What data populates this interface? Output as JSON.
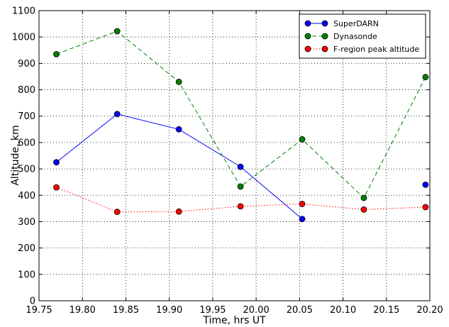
{
  "chart_data": {
    "type": "line",
    "title": "",
    "xlabel": "Time, hrs UT",
    "ylabel": "Altitude, km",
    "xlim": [
      19.75,
      20.2
    ],
    "ylim": [
      0,
      1100
    ],
    "x_ticks": [
      19.75,
      19.8,
      19.85,
      19.9,
      19.95,
      20.0,
      20.05,
      20.1,
      20.15,
      20.2
    ],
    "x_tick_labels": [
      "19.75",
      "19.80",
      "19.85",
      "19.90",
      "19.95",
      "20.00",
      "20.05",
      "20.10",
      "20.15",
      "20.20"
    ],
    "y_ticks": [
      0,
      100,
      200,
      300,
      400,
      500,
      600,
      700,
      800,
      900,
      1000,
      1100
    ],
    "y_tick_labels": [
      "0",
      "100",
      "200",
      "300",
      "400",
      "500",
      "600",
      "700",
      "800",
      "900",
      "1000",
      "1100"
    ],
    "grid": true,
    "legend_position": "top-right",
    "series": [
      {
        "name": "SuperDARN",
        "color": "#0000ff",
        "line_style": "solid",
        "segments": [
          [
            [
              19.77,
              525
            ],
            [
              19.84,
              708
            ],
            [
              19.911,
              650
            ],
            [
              19.982,
              508
            ],
            [
              20.053,
              310
            ]
          ],
          [
            [
              20.195,
              440
            ]
          ]
        ]
      },
      {
        "name": "Dynasonde",
        "color": "#008000",
        "line_style": "dashed",
        "segments": [
          [
            [
              19.77,
              935
            ],
            [
              19.84,
              1022
            ],
            [
              19.911,
              830
            ],
            [
              19.982,
              433
            ],
            [
              20.053,
              612
            ],
            [
              20.124,
              390
            ],
            [
              20.195,
              848
            ]
          ]
        ]
      },
      {
        "name": "F-region peak altitude",
        "color": "#ff0000",
        "line_style": "dotted",
        "segments": [
          [
            [
              19.77,
              430
            ],
            [
              19.84,
              337
            ],
            [
              19.911,
              338
            ],
            [
              19.982,
              358
            ],
            [
              20.053,
              367
            ],
            [
              20.124,
              346
            ],
            [
              20.195,
              355
            ]
          ]
        ]
      }
    ]
  }
}
